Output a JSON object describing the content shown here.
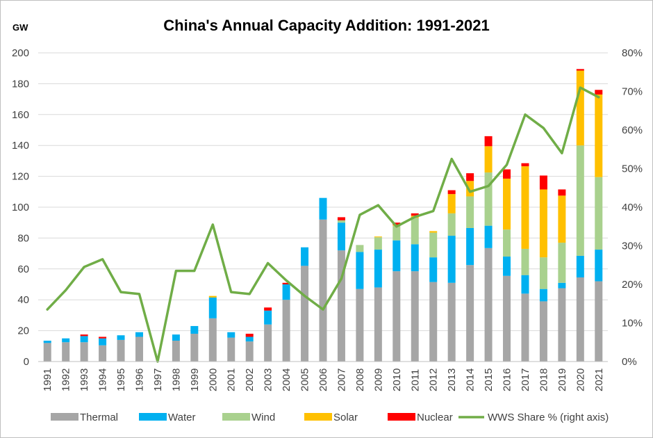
{
  "chart_data": {
    "type": "bar",
    "stacked": true,
    "title": "China's Annual Capacity Addition: 1991-2021",
    "ylabel": "GW",
    "ylim": [
      0,
      200
    ],
    "y_ticks": [
      "0",
      "20",
      "40",
      "60",
      "80",
      "100",
      "120",
      "140",
      "160",
      "180",
      "200"
    ],
    "y2lim": [
      0,
      80
    ],
    "y2_ticks": [
      "0%",
      "10%",
      "20%",
      "30%",
      "40%",
      "50%",
      "60%",
      "70%",
      "80%"
    ],
    "grid": "horizontal",
    "legend_position": "bottom",
    "categories": [
      "1991",
      "1992",
      "1993",
      "1994",
      "1995",
      "1996",
      "1997",
      "1998",
      "1999",
      "2000",
      "2001",
      "2002",
      "2003",
      "2004",
      "2005",
      "2006",
      "2007",
      "2008",
      "2009",
      "2010",
      "2011",
      "2012",
      "2013",
      "2014",
      "2015",
      "2016",
      "2017",
      "2018",
      "2019",
      "2020",
      "2021"
    ],
    "series": [
      {
        "name": "Thermal",
        "color": "#a6a6a6",
        "values": [
          12,
          12.5,
          12.5,
          10.5,
          14,
          16,
          0,
          13.5,
          18,
          28,
          15.5,
          13,
          24,
          40,
          62,
          92,
          72,
          47,
          48,
          58.5,
          58.5,
          51.5,
          51,
          62.5,
          73.5,
          55.5,
          44,
          39,
          47.5,
          54.5,
          52
        ]
      },
      {
        "name": "Water",
        "color": "#00b0f0",
        "values": [
          1.5,
          2.5,
          4,
          4.5,
          3,
          3,
          0,
          4,
          5,
          13.5,
          3.5,
          3,
          9,
          10,
          12,
          14,
          18,
          24,
          24.5,
          20,
          17.5,
          16,
          30.5,
          24,
          14.5,
          12.5,
          12,
          8,
          3.5,
          14,
          20.5
        ]
      },
      {
        "name": "Wind",
        "color": "#a9d18e",
        "values": [
          0,
          0,
          0,
          0,
          0,
          0,
          0,
          0,
          0,
          0,
          0,
          0,
          0,
          0,
          0,
          0,
          1.5,
          4.5,
          8,
          9.5,
          17,
          16,
          14.5,
          20.5,
          34.5,
          17.5,
          17,
          20.5,
          26,
          71.5,
          47
        ]
      },
      {
        "name": "Solar",
        "color": "#ffc000",
        "values": [
          0,
          0,
          0,
          0,
          0,
          0,
          0,
          0,
          0,
          1,
          0,
          0,
          0,
          0,
          0,
          0,
          0,
          0,
          0.5,
          0.5,
          1.5,
          1,
          12.5,
          10,
          17,
          33,
          53.5,
          44,
          30.5,
          48.5,
          53.5
        ]
      },
      {
        "name": "Nuclear",
        "color": "#ff0000",
        "values": [
          0,
          0,
          1,
          1,
          0,
          0,
          0,
          0,
          0,
          0,
          0,
          2,
          2,
          1,
          0,
          0,
          2,
          0,
          0,
          1.5,
          1.5,
          0,
          2.5,
          5,
          6.5,
          6,
          2,
          9,
          4,
          1,
          3
        ]
      }
    ],
    "line_series": {
      "name": "WWS Share % (right axis)",
      "color": "#70ad47",
      "axis": "right",
      "values": [
        13.5,
        18.5,
        24.5,
        26.5,
        18,
        17.5,
        0,
        23.5,
        23.5,
        35.5,
        18,
        17.5,
        25.5,
        21,
        17,
        13.5,
        21.5,
        38,
        40.5,
        35,
        37.5,
        39,
        52.5,
        44,
        45.5,
        51,
        64,
        60.5,
        54,
        71,
        68.5
      ]
    }
  }
}
